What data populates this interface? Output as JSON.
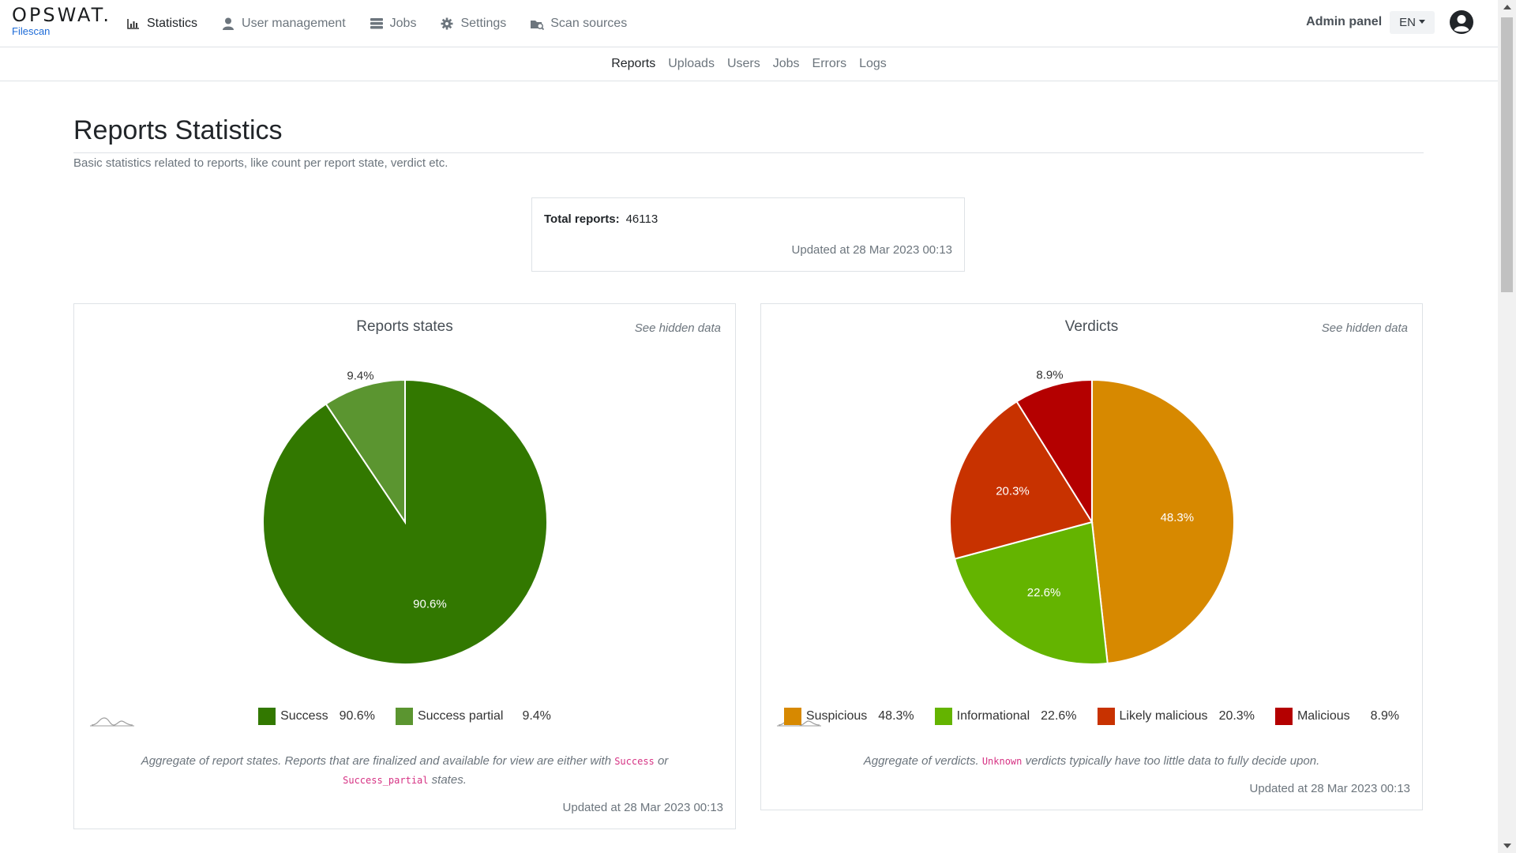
{
  "brand": {
    "logo": "OPSWAT.",
    "product": "Filescan"
  },
  "nav": {
    "items": [
      {
        "label": "Statistics",
        "icon": "bar-chart-icon",
        "active": true
      },
      {
        "label": "User management",
        "icon": "user-icon"
      },
      {
        "label": "Jobs",
        "icon": "server-icon"
      },
      {
        "label": "Settings",
        "icon": "gear-icon"
      },
      {
        "label": "Scan sources",
        "icon": "scan-sources-icon"
      }
    ],
    "admin_label": "Admin panel",
    "language": "EN"
  },
  "subnav": {
    "items": [
      {
        "label": "Reports",
        "active": true
      },
      {
        "label": "Uploads"
      },
      {
        "label": "Users"
      },
      {
        "label": "Jobs"
      },
      {
        "label": "Errors"
      },
      {
        "label": "Logs"
      }
    ]
  },
  "page": {
    "title": "Reports Statistics",
    "description": "Basic statistics related to reports, like count per report state, verdict etc."
  },
  "total": {
    "label": "Total reports:",
    "value": "46113",
    "updated": "Updated at 28 Mar 2023 00:13"
  },
  "cards": {
    "states": {
      "title": "Reports states",
      "hidden_link": "See hidden data",
      "desc_pre": "Aggregate of report states. Reports that are finalized and available for view are either with",
      "desc_code1": "Success",
      "desc_mid": "or",
      "desc_code2": "Success_partial",
      "desc_post": "states.",
      "updated": "Updated at 28 Mar 2023 00:13"
    },
    "verdicts": {
      "title": "Verdicts",
      "hidden_link": "See hidden data",
      "desc_pre": "Aggregate of verdicts.",
      "desc_code": "Unknown",
      "desc_post": "verdicts typically have too little data to fully decide upon.",
      "updated": "Updated at 28 Mar 2023 00:13"
    }
  },
  "chart_data": [
    {
      "type": "pie",
      "title": "Reports states",
      "categories": [
        "Success",
        "Success partial"
      ],
      "values": [
        90.6,
        9.4
      ],
      "labels": [
        "90.6%",
        "9.4%"
      ],
      "colors": [
        "#327800",
        "#5b9530"
      ],
      "legend": "bottom"
    },
    {
      "type": "pie",
      "title": "Verdicts",
      "categories": [
        "Suspicious",
        "Informational",
        "Likely malicious",
        "Malicious"
      ],
      "values": [
        48.3,
        22.6,
        20.3,
        8.9
      ],
      "labels": [
        "48.3%",
        "22.6%",
        "20.3%",
        "8.9%"
      ],
      "colors": [
        "#d78900",
        "#64b400",
        "#c83200",
        "#b40000"
      ],
      "legend": "bottom"
    }
  ]
}
